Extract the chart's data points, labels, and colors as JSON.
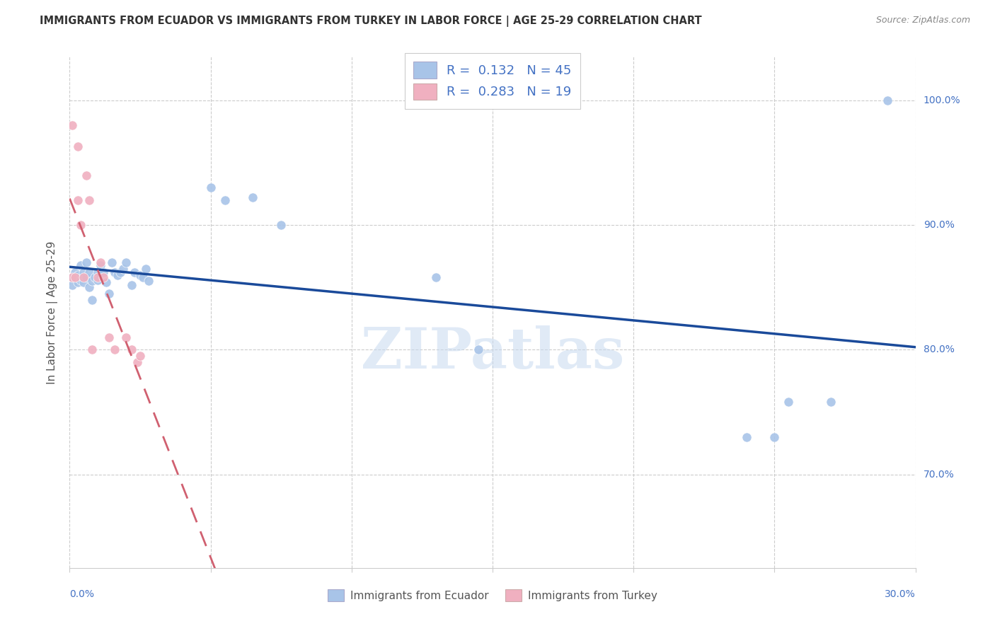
{
  "title": "IMMIGRANTS FROM ECUADOR VS IMMIGRANTS FROM TURKEY IN LABOR FORCE | AGE 25-29 CORRELATION CHART",
  "source": "Source: ZipAtlas.com",
  "ylabel": "In Labor Force | Age 25-29",
  "watermark": "ZIPatlas",
  "r_ecuador": 0.132,
  "n_ecuador": 45,
  "r_turkey": 0.283,
  "n_turkey": 19,
  "color_ecuador": "#a8c4e8",
  "color_turkey": "#f0b0c0",
  "color_trendline_ecuador": "#1a4a9a",
  "color_trendline_turkey": "#d06070",
  "xlim": [
    0.0,
    0.3
  ],
  "ylim": [
    0.625,
    1.035
  ],
  "ecuador_x": [
    0.001,
    0.001,
    0.002,
    0.003,
    0.003,
    0.004,
    0.004,
    0.005,
    0.005,
    0.006,
    0.006,
    0.007,
    0.007,
    0.008,
    0.008,
    0.009,
    0.01,
    0.01,
    0.011,
    0.012,
    0.013,
    0.014,
    0.015,
    0.016,
    0.017,
    0.018,
    0.019,
    0.02,
    0.022,
    0.023,
    0.025,
    0.026,
    0.027,
    0.028,
    0.05,
    0.055,
    0.065,
    0.075,
    0.13,
    0.145,
    0.24,
    0.25,
    0.255,
    0.27,
    0.29
  ],
  "ecuador_y": [
    0.858,
    0.852,
    0.862,
    0.86,
    0.854,
    0.868,
    0.856,
    0.862,
    0.854,
    0.87,
    0.858,
    0.862,
    0.85,
    0.855,
    0.84,
    0.858,
    0.862,
    0.856,
    0.868,
    0.862,
    0.854,
    0.845,
    0.87,
    0.862,
    0.86,
    0.862,
    0.865,
    0.87,
    0.852,
    0.862,
    0.86,
    0.858,
    0.865,
    0.855,
    0.93,
    0.92,
    0.922,
    0.9,
    0.858,
    0.8,
    0.73,
    0.73,
    0.758,
    0.758,
    1.0
  ],
  "turkey_x": [
    0.001,
    0.001,
    0.002,
    0.003,
    0.003,
    0.004,
    0.005,
    0.006,
    0.007,
    0.008,
    0.01,
    0.011,
    0.012,
    0.014,
    0.016,
    0.02,
    0.022,
    0.024,
    0.025
  ],
  "turkey_y": [
    0.858,
    0.98,
    0.858,
    0.963,
    0.92,
    0.9,
    0.858,
    0.94,
    0.92,
    0.8,
    0.858,
    0.87,
    0.858,
    0.81,
    0.8,
    0.81,
    0.8,
    0.79,
    0.795
  ],
  "xticks": [
    0.0,
    0.05,
    0.1,
    0.15,
    0.2,
    0.25,
    0.3
  ],
  "yticks": [
    0.7,
    0.8,
    0.9,
    1.0
  ],
  "ytick_labels": [
    "70.0%",
    "80.0%",
    "90.0%",
    "100.0%"
  ]
}
